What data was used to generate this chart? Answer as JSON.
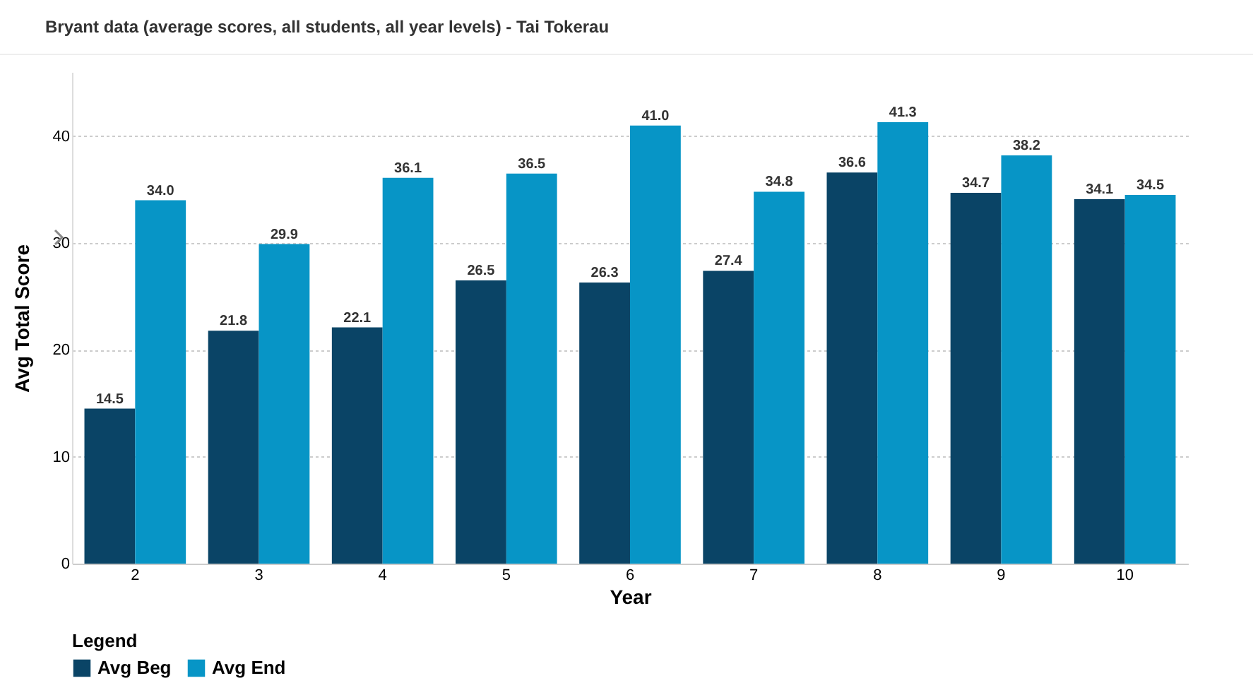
{
  "chart_data": {
    "type": "bar",
    "title": "Bryant data (average scores, all students, all year levels) - Tai Tokerau",
    "xlabel": "Year",
    "ylabel": "Avg Total Score",
    "legend_title": "Legend",
    "categories": [
      "2",
      "3",
      "4",
      "5",
      "6",
      "7",
      "8",
      "9",
      "10"
    ],
    "series": [
      {
        "name": "Avg Beg",
        "color": "#0a4466",
        "values": [
          14.5,
          21.8,
          22.1,
          26.5,
          26.3,
          27.4,
          36.6,
          34.7,
          34.1
        ],
        "value_labels": [
          "14.5",
          "21.8",
          "22.1",
          "26.5",
          "26.3",
          "27.4",
          "36.6",
          "34.7",
          "34.1"
        ]
      },
      {
        "name": "Avg End",
        "color": "#0795c6",
        "values": [
          34.0,
          29.9,
          36.1,
          36.5,
          41.0,
          34.8,
          41.3,
          38.2,
          34.5
        ],
        "value_labels": [
          "34.0",
          "29.9",
          "36.1",
          "36.5",
          "41.0",
          "34.8",
          "41.3",
          "38.2",
          "34.5"
        ]
      }
    ],
    "ylim": [
      0,
      46
    ],
    "yticks": [
      0,
      10,
      20,
      30,
      40
    ],
    "grid": "y",
    "legend": "bottom"
  }
}
